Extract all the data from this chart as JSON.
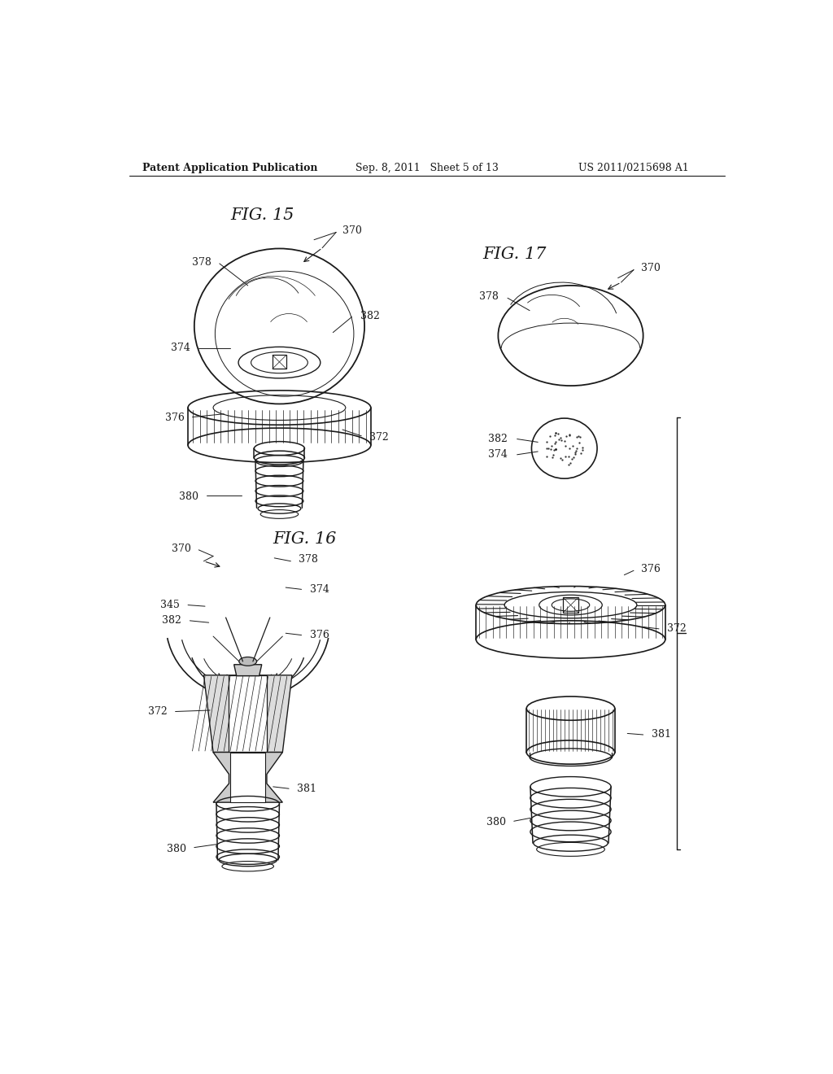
{
  "bg_color": "#ffffff",
  "text_color": "#1a1a1a",
  "header_left": "Patent Application Publication",
  "header_center": "Sep. 8, 2011   Sheet 5 of 13",
  "header_right": "US 2011/0215698 A1",
  "fig15_title": "FIG. 15",
  "fig16_title": "FIG. 16",
  "fig17_title": "FIG. 17",
  "lc": "#1a1a1a"
}
